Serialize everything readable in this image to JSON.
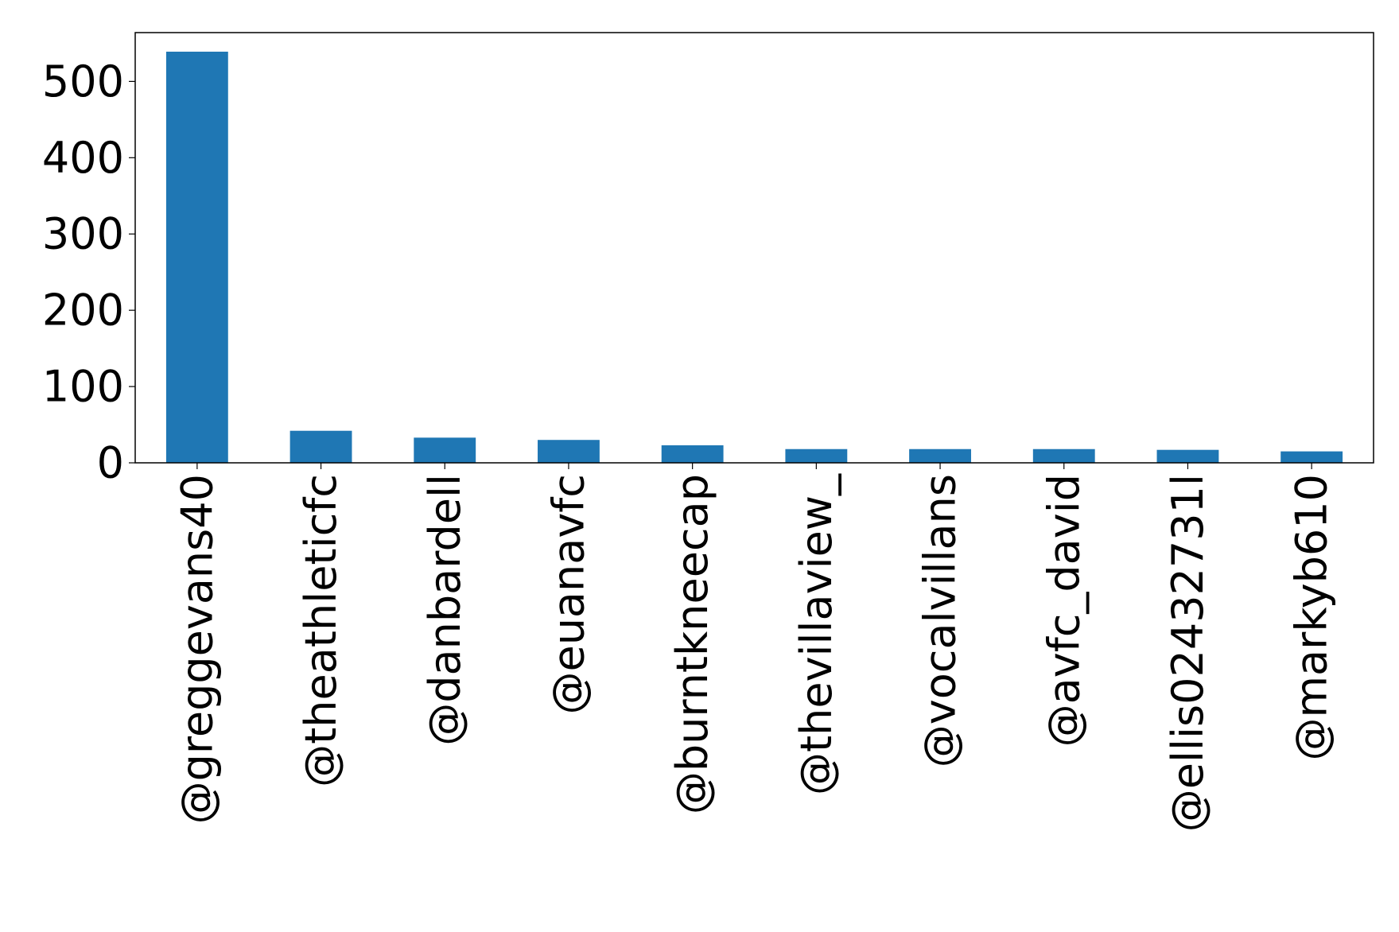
{
  "chart_data": {
    "type": "bar",
    "title": "",
    "xlabel": "",
    "ylabel": "",
    "categories": [
      "@greggevans40",
      "@theathleticfc",
      "@danbardell",
      "@euanavfc",
      "@burntkneecap",
      "@thevillaview_",
      "@vocalvillans",
      "@avfc_david",
      "@ellis02432731l",
      "@markyb610"
    ],
    "values": [
      539,
      42,
      33,
      30,
      23,
      18,
      18,
      18,
      17,
      15
    ],
    "ylim": [
      0,
      564
    ],
    "yticks": [
      "0",
      "100",
      "200",
      "300",
      "400",
      "500"
    ],
    "grid": false,
    "legend": "none",
    "color": "#1f77b4"
  }
}
